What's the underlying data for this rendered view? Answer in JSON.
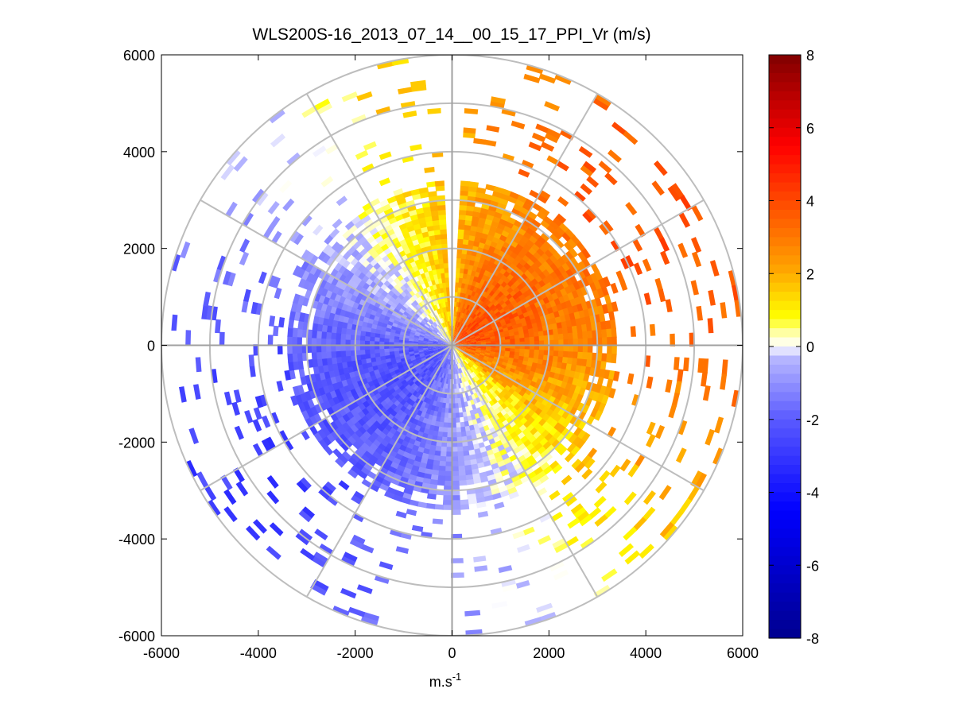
{
  "chart_data": {
    "type": "ppi-polar-scan",
    "title": "WLS200S-16_2013_07_14__00_15_17_PPI_Vr (m/s)",
    "xlabel": "m.s",
    "xlabel_superscript": "-1",
    "ylabel": "",
    "xlim": [
      -6000,
      6000
    ],
    "ylim": [
      -6000,
      6000
    ],
    "x_ticks": [
      -6000,
      -4000,
      -2000,
      0,
      2000,
      4000,
      6000
    ],
    "y_ticks": [
      6000,
      4000,
      2000,
      0,
      -2000,
      -4000,
      -6000
    ],
    "range_rings_m": [
      1000,
      2000,
      3000,
      4000,
      5000,
      6000
    ],
    "radial_spokes_deg": [
      0,
      30,
      60,
      90,
      120,
      150,
      180,
      210,
      240,
      270,
      300,
      330
    ],
    "gap_azimuth_deg": [
      -4,
      3
    ],
    "dense_max_range_m": 3400,
    "sparse_max_range_m": 6000,
    "wind_model": {
      "mean_radial_velocity_ms": 0.4,
      "amplitude_ms": 2.6,
      "blue_max_toward_azimuth_deg": 240,
      "yellow_lobe_center_azimuth_deg": 70
    },
    "colorbar": {
      "min": -8,
      "max": 8,
      "tick_labels": [
        "8",
        "6",
        "4",
        "2",
        "0",
        "-2",
        "-4",
        "-6",
        "-8"
      ],
      "tick_values": [
        8,
        6,
        4,
        2,
        0,
        -2,
        -4,
        -6,
        -8
      ],
      "colors": {
        "dark_blue": "#00008f",
        "blue": "#0000ff",
        "mid_blue": "#5a5aff",
        "light_blue": "#b8b8ff",
        "near_zero": "#ffffff",
        "yellow": "#ffff00",
        "orange": "#ff9f00",
        "red": "#ff0000",
        "dark_red": "#800000"
      }
    }
  }
}
